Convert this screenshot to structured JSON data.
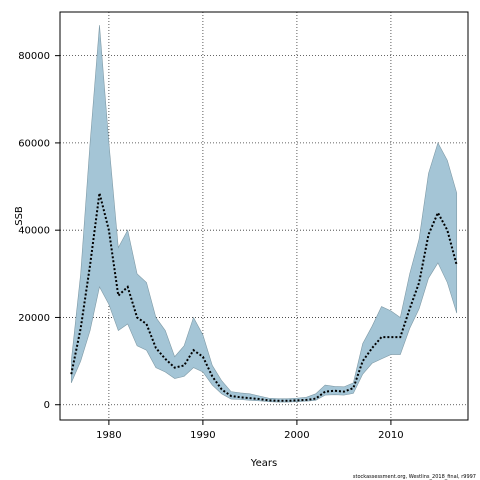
{
  "chart_data": {
    "type": "area",
    "title": "",
    "xlabel": "Years",
    "ylabel": "SSB",
    "xlim": [
      1974.8,
      2018.2
    ],
    "ylim": [
      -3500,
      90000
    ],
    "xticks": [
      1980,
      1990,
      2000,
      2010
    ],
    "yticks": [
      0,
      20000,
      40000,
      60000,
      80000
    ],
    "grid": true,
    "footnote": "stockassessment.org, Westlins_2018_final, r9997",
    "colors": {
      "band": "#a4c5d6",
      "band_edge": "#7f9aa6",
      "line": "#000000"
    },
    "x": [
      1976,
      1977,
      1978,
      1979,
      1980,
      1981,
      1982,
      1983,
      1984,
      1985,
      1986,
      1987,
      1988,
      1989,
      1990,
      1991,
      1992,
      1993,
      1994,
      1995,
      1996,
      1997,
      1998,
      1999,
      2000,
      2001,
      2002,
      2003,
      2004,
      2005,
      2006,
      2007,
      2008,
      2009,
      2010,
      2011,
      2012,
      2013,
      2014,
      2015,
      2016,
      2017
    ],
    "series": [
      {
        "role": "estimate",
        "values": [
          7000,
          17500,
          32000,
          48500,
          40000,
          25000,
          27000,
          20000,
          18500,
          13000,
          10500,
          8500,
          9000,
          12500,
          11000,
          6500,
          3500,
          2000,
          1700,
          1500,
          1300,
          1000,
          900,
          900,
          1000,
          1100,
          1400,
          3000,
          3200,
          3000,
          3800,
          10000,
          13000,
          15500,
          15500,
          15500,
          22000,
          28000,
          39000,
          44000,
          40000,
          32000
        ]
      },
      {
        "role": "lower",
        "values": [
          5000,
          10000,
          17000,
          27000,
          23000,
          17000,
          18500,
          13500,
          12500,
          8500,
          7500,
          6000,
          6500,
          8500,
          7500,
          4500,
          2500,
          1300,
          1200,
          1000,
          900,
          700,
          600,
          600,
          700,
          800,
          1000,
          2200,
          2300,
          2200,
          2600,
          7000,
          9500,
          10500,
          11500,
          11500,
          17500,
          22000,
          29000,
          32500,
          28000,
          21000
        ]
      },
      {
        "role": "upper",
        "values": [
          10000,
          30000,
          60000,
          87000,
          60000,
          36000,
          40000,
          30000,
          28000,
          20000,
          17000,
          11000,
          13500,
          20000,
          16000,
          9000,
          5500,
          3000,
          2700,
          2500,
          2000,
          1500,
          1400,
          1400,
          1500,
          1700,
          2500,
          4500,
          4200,
          4100,
          5000,
          14000,
          18000,
          22500,
          21500,
          20000,
          30000,
          38000,
          53000,
          60000,
          56000,
          48500
        ]
      }
    ]
  }
}
